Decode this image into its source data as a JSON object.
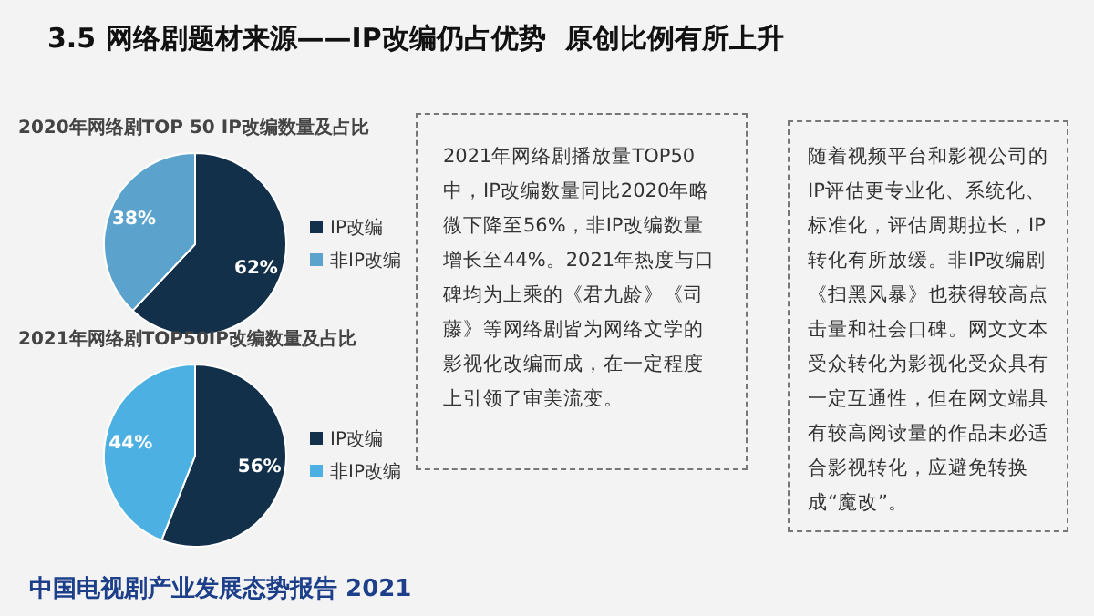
{
  "chart_data": [
    {
      "type": "pie",
      "title": "2020年网络剧TOP 50 IP改编数量及占比",
      "categories": [
        "IP改编",
        "非IP改编"
      ],
      "values": [
        62,
        38
      ],
      "colors": [
        "#12304a",
        "#5ba3cc"
      ],
      "value_labels": [
        "62%",
        "38%"
      ],
      "legend": "right"
    },
    {
      "type": "pie",
      "title": "2021年网络剧TOP50IP改编数量及占比",
      "categories": [
        "IP改编",
        "非IP改编"
      ],
      "values": [
        56,
        44
      ],
      "colors": [
        "#12304a",
        "#4cb0e2"
      ],
      "value_labels": [
        "56%",
        "44%"
      ],
      "legend": "right"
    },
    {
      "type": "other",
      "title": "3.5 网络剧题材来源——IP改编仍占优势  原创比例有所上升",
      "annotations": [
        "2021年网络剧播放量TOP50中，IP改编数量同比2020年略微下降至56%，非IP改编数量增长至44%。2021年热度与口碑均为上乘的《君九龄》《司藤》等网络剧皆为网络文学的影视化改编而成，在一定程度上引领了审美流变。",
        "随着视频平台和影视公司的IP评估更专业化、系统化、标准化，评估周期拉长，IP转化有所放缓。非IP改编剧《扫黑风暴》也获得较高点击量和社会口碑。网文文本受众转化为影视化受众具有一定互通性，但在网文端具有较高阅读量的作品未必适合影视转化，应避免转换成“魔改”。",
        "中国电视剧产业发展态势报告 2021"
      ]
    }
  ]
}
